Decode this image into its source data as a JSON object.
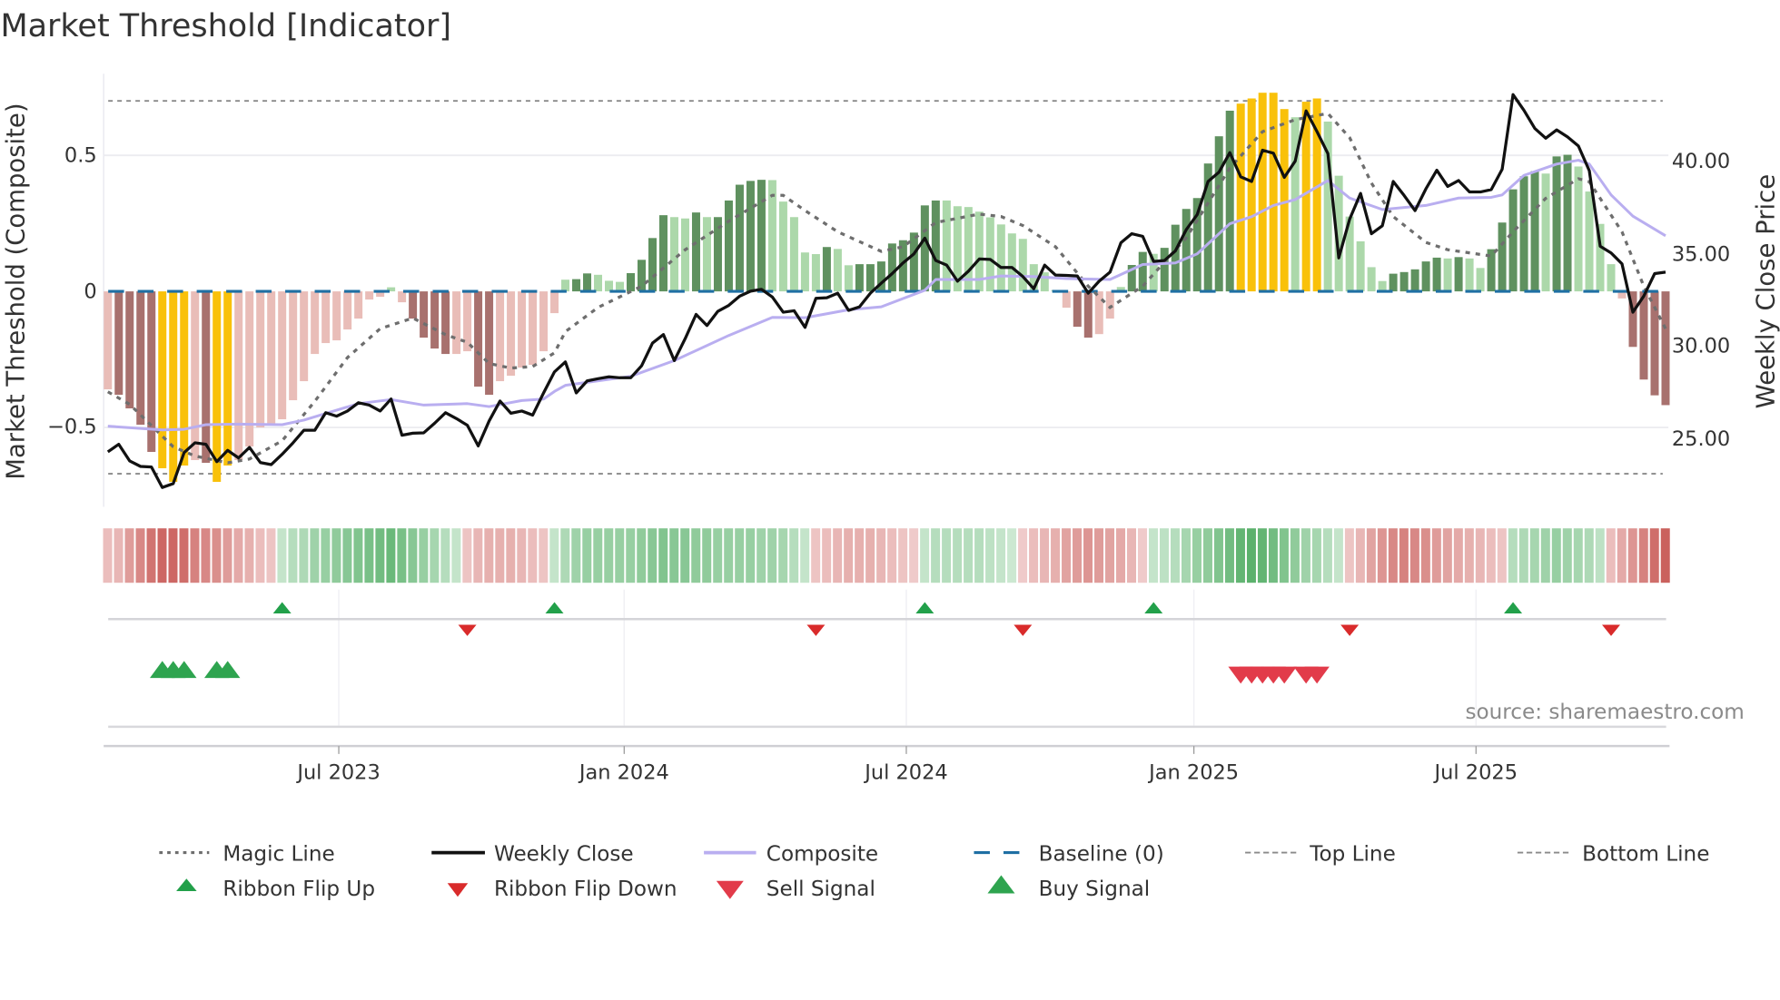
{
  "title": "Market Threshold [Indicator]",
  "colors": {
    "bar_pos_dark": "#5f915f",
    "bar_pos_light": "#acd8aa",
    "bar_neg_dark": "#a8716e",
    "bar_neg_light": "#e9bdb8",
    "bar_peak": "#f9c10a",
    "weekly_close": "#111111",
    "composite": "#b9aef0",
    "magic_line": "#6e6e6e",
    "baseline": "#1f6fa3",
    "threshold_lines": "#8a8a8a",
    "ribbon_green": "#4caa5f",
    "ribbon_red": "#c85a56",
    "flip_up": "#22a04a",
    "flip_down": "#d92b2b",
    "buy": "#2ea44f",
    "sell": "#e23b4a"
  },
  "chart_data": {
    "type": "bar",
    "title": "Market Threshold [Indicator]",
    "ylabel": "Market Threshold (Composite)",
    "y2label": "Weekly Close Price",
    "xlabel": "",
    "ylim": [
      -0.79,
      0.8
    ],
    "y2lim": [
      21.23,
      44.68
    ],
    "grid": true,
    "legend_placement": "bottom",
    "weeks": 144,
    "yticks": [
      {
        "value": 0.5,
        "label": "0.5"
      },
      {
        "value": 0,
        "label": "0"
      },
      {
        "value": -0.5,
        "label": "−0.5"
      }
    ],
    "y2ticks": [
      {
        "value": 40,
        "label": "40.00"
      },
      {
        "value": 35,
        "label": "35.00"
      },
      {
        "value": 30,
        "label": "30.00"
      },
      {
        "value": 25,
        "label": "25.00"
      }
    ],
    "xticks": [
      {
        "week": 22.2,
        "label": "Jul 2023"
      },
      {
        "week": 48.4,
        "label": "Jan 2024"
      },
      {
        "week": 74.3,
        "label": "Jul 2024"
      },
      {
        "week": 100.7,
        "label": "Jan 2025"
      },
      {
        "week": 126.6,
        "label": "Jul 2025"
      }
    ],
    "top_line": 0.7,
    "bottom_line": -0.67,
    "baseline": 0,
    "composite_bars": [
      -0.36,
      -0.38,
      -0.43,
      -0.49,
      -0.59,
      -0.65,
      -0.7,
      -0.64,
      -0.62,
      -0.63,
      -0.7,
      -0.64,
      -0.62,
      -0.57,
      -0.5,
      -0.49,
      -0.47,
      -0.4,
      -0.33,
      -0.23,
      -0.19,
      -0.18,
      -0.14,
      -0.1,
      -0.03,
      -0.02,
      0.015,
      -0.04,
      -0.1,
      -0.17,
      -0.21,
      -0.23,
      -0.23,
      -0.22,
      -0.35,
      -0.38,
      -0.33,
      -0.31,
      -0.28,
      -0.27,
      -0.22,
      -0.08,
      0.043,
      0.045,
      0.066,
      0.061,
      0.039,
      0.035,
      0.067,
      0.116,
      0.196,
      0.28,
      0.273,
      0.268,
      0.29,
      0.273,
      0.273,
      0.334,
      0.392,
      0.406,
      0.41,
      0.409,
      0.33,
      0.273,
      0.143,
      0.137,
      0.163,
      0.156,
      0.096,
      0.1,
      0.1,
      0.11,
      0.176,
      0.188,
      0.216,
      0.316,
      0.334,
      0.334,
      0.313,
      0.31,
      0.293,
      0.272,
      0.246,
      0.213,
      0.193,
      0.1,
      0.07,
      0.005,
      -0.06,
      -0.13,
      -0.17,
      -0.157,
      -0.1,
      0.016,
      0.097,
      0.145,
      0.138,
      0.16,
      0.245,
      0.303,
      0.343,
      0.47,
      0.57,
      0.664,
      0.69,
      0.709,
      0.73,
      0.73,
      0.67,
      0.64,
      0.697,
      0.709,
      0.624,
      0.425,
      0.275,
      0.184,
      0.089,
      0.038,
      0.065,
      0.071,
      0.081,
      0.11,
      0.124,
      0.121,
      0.126,
      0.121,
      0.086,
      0.155,
      0.253,
      0.375,
      0.423,
      0.442,
      0.433,
      0.496,
      0.502,
      0.459,
      0.367,
      0.248,
      0.1,
      -0.026,
      -0.204,
      -0.324,
      -0.382,
      -0.418
    ],
    "bar_styles": "LDDDDYYYLDYYLLLLLLLLLLLLLLLLDDDDLLDDLLLLLLLDDLLLDDDDLLDLDDDDDLLLLLDLLDDDDDDDDLLLLLLLLLLLLDDLLLDDLDDDDDDDYYYYYLYYLLLLLLDDDDDLDLLDDDDDLDDLLLLLDDDD",
    "bar_style_legend": {
      "D": "strong",
      "L": "weak",
      "Y": "extreme"
    },
    "weekly_close": [
      24.21,
      24.62,
      23.72,
      23.42,
      23.39,
      22.28,
      22.49,
      24.17,
      24.7,
      24.62,
      23.68,
      24.29,
      23.88,
      24.45,
      23.63,
      23.52,
      24.08,
      24.7,
      25.38,
      25.38,
      26.33,
      26.14,
      26.42,
      26.87,
      26.74,
      26.42,
      27.07,
      25.11,
      25.22,
      25.24,
      25.76,
      26.33,
      26.01,
      25.65,
      24.53,
      25.88,
      26.96,
      26.3,
      26.42,
      26.2,
      27.4,
      28.54,
      29.08,
      27.4,
      28.05,
      28.17,
      28.27,
      28.22,
      28.22,
      28.87,
      30.1,
      30.56,
      29.15,
      30.34,
      31.65,
      31.05,
      31.82,
      32.14,
      32.64,
      32.91,
      33.01,
      32.59,
      31.77,
      31.85,
      30.95,
      32.52,
      32.55,
      32.8,
      31.87,
      32.06,
      32.8,
      33.34,
      33.86,
      34.44,
      34.93,
      35.78,
      34.57,
      34.32,
      33.45,
      33.99,
      34.65,
      34.63,
      34.19,
      34.19,
      33.7,
      33.04,
      34.32,
      33.78,
      33.76,
      33.73,
      32.8,
      33.45,
      33.94,
      35.53,
      36.02,
      35.88,
      34.52,
      34.57,
      35.09,
      36.24,
      37.05,
      38.85,
      39.35,
      40.41,
      39.1,
      38.85,
      40.54,
      40.38,
      39.07,
      39.95,
      42.67,
      41.55,
      40.36,
      34.71,
      36.81,
      38.2,
      36.02,
      36.45,
      38.85,
      38.09,
      37.27,
      38.45,
      39.46,
      38.58,
      38.9,
      38.28,
      38.28,
      38.41,
      39.51,
      43.55,
      42.7,
      41.72,
      41.19,
      41.64,
      41.26,
      40.77,
      39.43,
      35.34,
      34.98,
      34.39,
      31.77,
      32.64,
      33.86,
      33.94
    ],
    "composite": [
      [
        1,
        25.6
      ],
      [
        6,
        25.4
      ],
      [
        8,
        25.43
      ],
      [
        10,
        25.68
      ],
      [
        13,
        25.71
      ],
      [
        17,
        25.68
      ],
      [
        19,
        25.93
      ],
      [
        24,
        26.82
      ],
      [
        27,
        27.04
      ],
      [
        30,
        26.74
      ],
      [
        34,
        26.82
      ],
      [
        36,
        26.66
      ],
      [
        39,
        26.99
      ],
      [
        41,
        27.07
      ],
      [
        42,
        27.48
      ],
      [
        43,
        27.81
      ],
      [
        49,
        28.3
      ],
      [
        53,
        29.15
      ],
      [
        58,
        30.51
      ],
      [
        62,
        31.49
      ],
      [
        65,
        31.47
      ],
      [
        69,
        31.9
      ],
      [
        72,
        32.06
      ],
      [
        76,
        32.96
      ],
      [
        77,
        33.54
      ],
      [
        81,
        33.54
      ],
      [
        83,
        33.73
      ],
      [
        86,
        33.7
      ],
      [
        89,
        33.59
      ],
      [
        93,
        33.54
      ],
      [
        96,
        34.35
      ],
      [
        99,
        34.44
      ],
      [
        101,
        34.93
      ],
      [
        104,
        36.56
      ],
      [
        106,
        36.94
      ],
      [
        108,
        37.55
      ],
      [
        110,
        37.87
      ],
      [
        113,
        38.9
      ],
      [
        115,
        37.95
      ],
      [
        118,
        37.33
      ],
      [
        122,
        37.55
      ],
      [
        125,
        37.95
      ],
      [
        128,
        37.99
      ],
      [
        129,
        38.12
      ],
      [
        131,
        39.18
      ],
      [
        134,
        39.79
      ],
      [
        136,
        40.0
      ],
      [
        137,
        39.79
      ],
      [
        139,
        38.12
      ],
      [
        141,
        36.97
      ],
      [
        144,
        35.91
      ]
    ],
    "magic_line": [
      [
        1,
        -0.369
      ],
      [
        3,
        -0.415
      ],
      [
        5,
        -0.493
      ],
      [
        7,
        -0.571
      ],
      [
        9,
        -0.605
      ],
      [
        12,
        -0.63
      ],
      [
        14,
        -0.616
      ],
      [
        17,
        -0.549
      ],
      [
        20,
        -0.404
      ],
      [
        23,
        -0.243
      ],
      [
        26,
        -0.137
      ],
      [
        29,
        -0.098
      ],
      [
        32,
        -0.159
      ],
      [
        34,
        -0.187
      ],
      [
        36,
        -0.265
      ],
      [
        38,
        -0.282
      ],
      [
        40,
        -0.276
      ],
      [
        42,
        -0.226
      ],
      [
        43,
        -0.148
      ],
      [
        46,
        -0.059
      ],
      [
        50,
        0.019
      ],
      [
        54,
        0.153
      ],
      [
        58,
        0.258
      ],
      [
        62,
        0.353
      ],
      [
        63,
        0.353
      ],
      [
        65,
        0.297
      ],
      [
        68,
        0.219
      ],
      [
        72,
        0.147
      ],
      [
        74,
        0.164
      ],
      [
        77,
        0.253
      ],
      [
        81,
        0.284
      ],
      [
        83,
        0.275
      ],
      [
        85,
        0.242
      ],
      [
        88,
        0.164
      ],
      [
        91,
        0.019
      ],
      [
        93,
        -0.059
      ],
      [
        96,
        0.019
      ],
      [
        100,
        0.197
      ],
      [
        104,
        0.453
      ],
      [
        107,
        0.587
      ],
      [
        110,
        0.631
      ],
      [
        113,
        0.654
      ],
      [
        115,
        0.565
      ],
      [
        117,
        0.398
      ],
      [
        119,
        0.275
      ],
      [
        122,
        0.18
      ],
      [
        124,
        0.153
      ],
      [
        128,
        0.13
      ],
      [
        130,
        0.219
      ],
      [
        133,
        0.342
      ],
      [
        136,
        0.414
      ],
      [
        137,
        0.403
      ],
      [
        140,
        0.219
      ],
      [
        142,
        0.019
      ],
      [
        144,
        -0.137
      ]
    ],
    "ribbon": [
      -0.25,
      -0.3,
      -0.5,
      -0.65,
      -0.8,
      -0.9,
      -0.9,
      -0.85,
      -0.7,
      -0.65,
      -0.6,
      -0.5,
      -0.4,
      -0.35,
      -0.25,
      -0.2,
      0.2,
      0.3,
      0.35,
      0.45,
      0.5,
      0.55,
      0.6,
      0.65,
      0.7,
      0.75,
      0.8,
      0.7,
      0.6,
      0.5,
      0.4,
      0.3,
      0.2,
      -0.2,
      -0.3,
      -0.35,
      -0.35,
      -0.35,
      -0.3,
      -0.25,
      -0.2,
      0.2,
      0.35,
      0.45,
      0.5,
      0.5,
      0.5,
      0.5,
      0.5,
      0.55,
      0.6,
      0.65,
      0.6,
      0.6,
      0.55,
      0.55,
      0.5,
      0.5,
      0.5,
      0.5,
      0.45,
      0.45,
      0.4,
      0.3,
      0.2,
      -0.2,
      -0.25,
      -0.3,
      -0.35,
      -0.35,
      -0.35,
      -0.3,
      -0.25,
      -0.2,
      -0.15,
      0.2,
      0.3,
      0.3,
      0.3,
      0.3,
      0.3,
      0.25,
      0.2,
      0.15,
      -0.15,
      -0.25,
      -0.3,
      -0.35,
      -0.45,
      -0.5,
      -0.55,
      -0.5,
      -0.45,
      -0.4,
      -0.3,
      -0.15,
      0.2,
      0.25,
      0.3,
      0.4,
      0.5,
      0.55,
      0.65,
      0.75,
      0.85,
      0.9,
      0.85,
      0.75,
      0.65,
      0.55,
      0.45,
      0.4,
      0.3,
      0.2,
      -0.2,
      -0.3,
      -0.45,
      -0.55,
      -0.65,
      -0.7,
      -0.65,
      -0.6,
      -0.5,
      -0.45,
      -0.4,
      -0.35,
      -0.3,
      -0.25,
      -0.2,
      0.3,
      0.35,
      0.4,
      0.45,
      0.5,
      0.45,
      0.4,
      0.35,
      0.25,
      -0.25,
      -0.4,
      -0.55,
      -0.7,
      -0.85,
      -0.95
    ],
    "ribbon_flip_up": [
      17,
      42,
      76,
      97,
      130
    ],
    "ribbon_flip_down": [
      34,
      66,
      85,
      115,
      139
    ],
    "buy_signals": [
      6,
      7,
      8,
      11,
      12
    ],
    "sell_signals": [
      105,
      106,
      107,
      108,
      109,
      111,
      112
    ]
  },
  "legend": {
    "magic_line": "Magic Line",
    "weekly_close": "Weekly Close",
    "composite": "Composite",
    "baseline": "Baseline (0)",
    "top_line": "Top Line",
    "bottom_line": "Bottom Line",
    "ribbon_flip_up": "Ribbon Flip Up",
    "ribbon_flip_down": "Ribbon Flip Down",
    "sell_signal": "Sell Signal",
    "buy_signal": "Buy Signal"
  },
  "source": "source: sharemaestro.com"
}
